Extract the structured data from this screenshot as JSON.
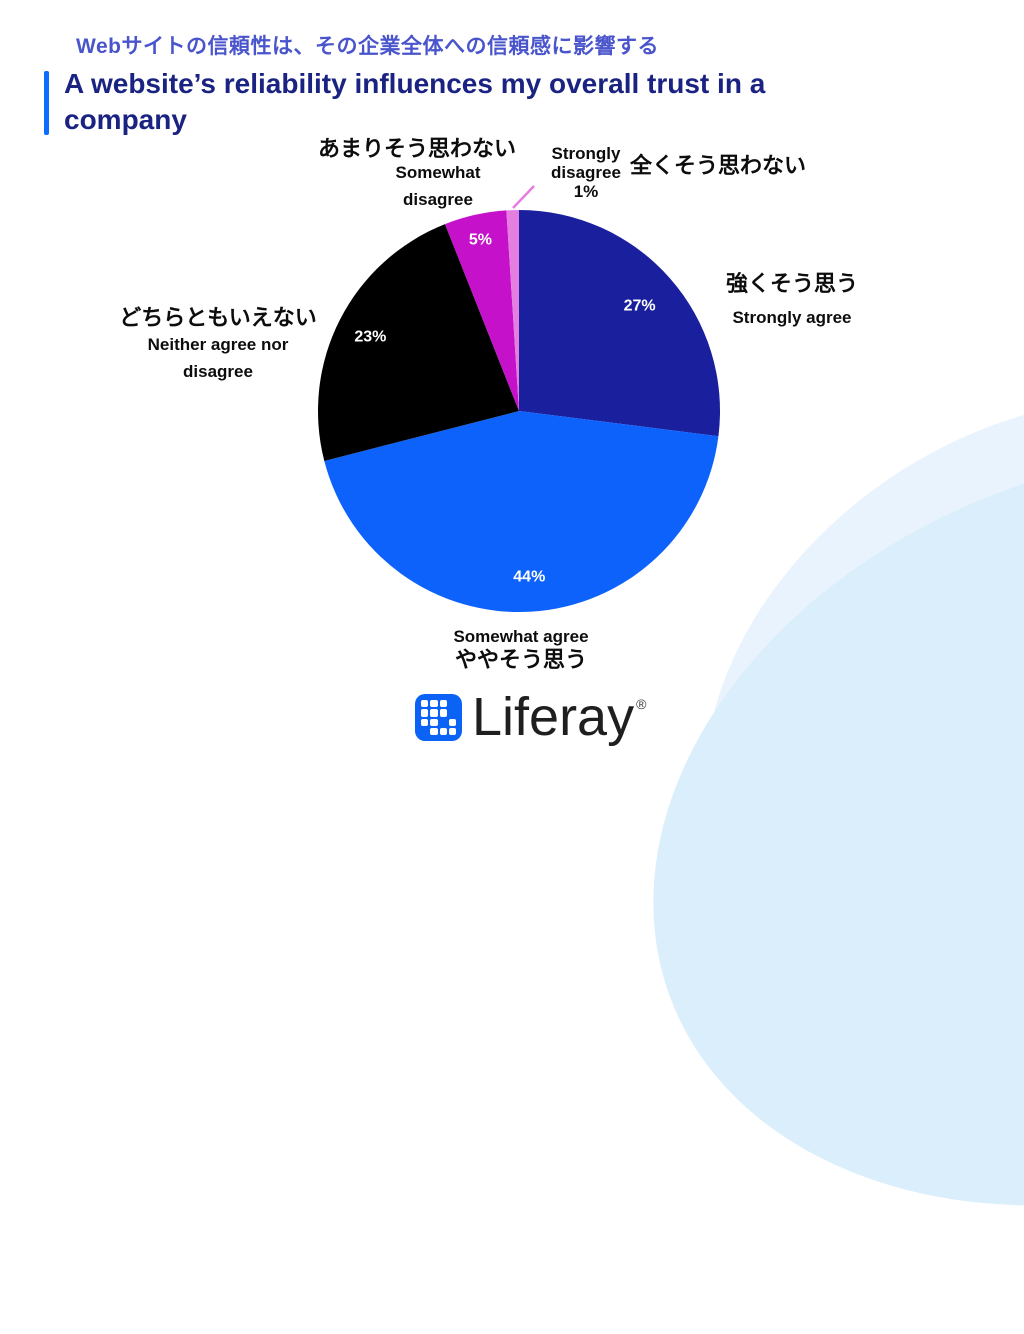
{
  "slide": {
    "jp_title": "Webサイトの信頼性は、その企業全体への信頼感に影響する",
    "en_title_lines": [
      "A website’s reliability influences my overall trust in a",
      "company"
    ]
  },
  "chart_data": {
    "type": "pie",
    "title": "A website’s reliability influences my overall trust in a company",
    "units": "percent",
    "direction": "clockwise",
    "start_angle_deg": 0,
    "legend_position": "around-labels",
    "slices": [
      {
        "label_en": "Strongly agree",
        "label_jp": "強くそう思う",
        "value": 27,
        "pct_label": "27%",
        "color": "#1a1f9e"
      },
      {
        "label_en": "Somewhat agree",
        "label_jp": "ややそう思う",
        "value": 44,
        "pct_label": "44%",
        "color": "#0d62fc"
      },
      {
        "label_en": "Neither agree nor disagree",
        "label_jp": "どちらともいえない",
        "value": 23,
        "pct_label": "23%",
        "color": "#000000"
      },
      {
        "label_en": "Somewhat disagree",
        "label_jp": "あまりそう思わない",
        "value": 5,
        "pct_label": "5%",
        "color": "#c511c9"
      },
      {
        "label_en": "Strongly disagree",
        "label_jp": "全くそう思わない",
        "value": 1,
        "pct_label": "1%",
        "color": "#e57ee1"
      }
    ]
  },
  "logo": {
    "brand": "Liferay",
    "reg": "®"
  },
  "colors": {
    "accent_bar": "#0d6efd",
    "jp_title": "#4a55cc",
    "en_title": "#1b2382",
    "pct_label": "#ffffff",
    "callout_text": "#0d0d0d",
    "leader_line": "#e57ee1",
    "deco_light": "#e9f3fd",
    "deco_dark": "#daeefb",
    "logo_blue": "#0b63f6",
    "logo_text": "#1f1f1f"
  }
}
